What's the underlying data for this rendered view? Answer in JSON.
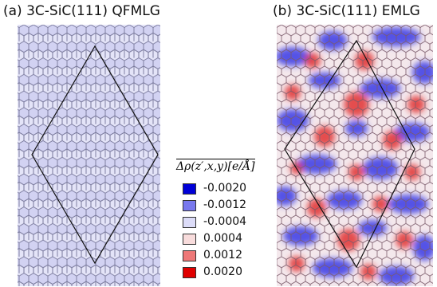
{
  "panel_a": {
    "title": "(a) 3C-SiC(111) QFMLG",
    "fill": "#dcdcf4"
  },
  "panel_b": {
    "title": "(b) 3C-SiC(111) EMLG"
  },
  "legend": {
    "title": "Δρ(z′,x,y)[e/Å]",
    "items": [
      {
        "label": "-0.0020",
        "color": "#0000d8"
      },
      {
        "label": "-0.0012",
        "color": "#7878ee"
      },
      {
        "label": "-0.0004",
        "color": "#dcdcf8"
      },
      {
        "label": "0.0004",
        "color": "#f8dcdc"
      },
      {
        "label": "0.0012",
        "color": "#ee7878"
      },
      {
        "label": "0.0020",
        "color": "#e00000"
      }
    ]
  }
}
